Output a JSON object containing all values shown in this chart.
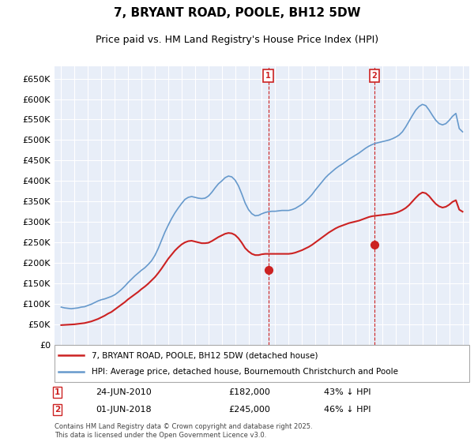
{
  "title": "7, BRYANT ROAD, POOLE, BH12 5DW",
  "subtitle": "Price paid vs. HM Land Registry's House Price Index (HPI)",
  "y_label_format": "£{0}K",
  "yticks": [
    0,
    50000,
    100000,
    150000,
    200000,
    250000,
    300000,
    350000,
    400000,
    450000,
    500000,
    550000,
    600000,
    650000
  ],
  "ytick_labels": [
    "£0",
    "£50K",
    "£100K",
    "£150K",
    "£200K",
    "£250K",
    "£300K",
    "£350K",
    "£400K",
    "£450K",
    "£500K",
    "£550K",
    "£600K",
    "£650K"
  ],
  "xlim_start": 1994.5,
  "xlim_end": 2025.5,
  "ylim_min": 0,
  "ylim_max": 680000,
  "bg_color": "#e8eef8",
  "plot_bg_color": "#e8eef8",
  "grid_color": "#ffffff",
  "hpi_line_color": "#6699cc",
  "price_line_color": "#cc2222",
  "marker_color": "#cc2222",
  "annotation_box_color": "#cc2222",
  "legend_box_color": "#ffffff",
  "legend_border_color": "#aaaaaa",
  "sale1_x": 2010.48,
  "sale1_y": 182000,
  "sale1_label": "1",
  "sale1_date": "24-JUN-2010",
  "sale1_price": "£182,000",
  "sale1_pct": "43% ↓ HPI",
  "sale2_x": 2018.42,
  "sale2_y": 245000,
  "sale2_label": "2",
  "sale2_date": "01-JUN-2018",
  "sale2_price": "£245,000",
  "sale2_pct": "46% ↓ HPI",
  "footer": "Contains HM Land Registry data © Crown copyright and database right 2025.\nThis data is licensed under the Open Government Licence v3.0.",
  "legend1": "7, BRYANT ROAD, POOLE, BH12 5DW (detached house)",
  "legend2": "HPI: Average price, detached house, Bournemouth Christchurch and Poole",
  "hpi_years": [
    1995.0,
    1995.25,
    1995.5,
    1995.75,
    1996.0,
    1996.25,
    1996.5,
    1996.75,
    1997.0,
    1997.25,
    1997.5,
    1997.75,
    1998.0,
    1998.25,
    1998.5,
    1998.75,
    1999.0,
    1999.25,
    1999.5,
    1999.75,
    2000.0,
    2000.25,
    2000.5,
    2000.75,
    2001.0,
    2001.25,
    2001.5,
    2001.75,
    2002.0,
    2002.25,
    2002.5,
    2002.75,
    2003.0,
    2003.25,
    2003.5,
    2003.75,
    2004.0,
    2004.25,
    2004.5,
    2004.75,
    2005.0,
    2005.25,
    2005.5,
    2005.75,
    2006.0,
    2006.25,
    2006.5,
    2006.75,
    2007.0,
    2007.25,
    2007.5,
    2007.75,
    2008.0,
    2008.25,
    2008.5,
    2008.75,
    2009.0,
    2009.25,
    2009.5,
    2009.75,
    2010.0,
    2010.25,
    2010.5,
    2010.75,
    2011.0,
    2011.25,
    2011.5,
    2011.75,
    2012.0,
    2012.25,
    2012.5,
    2012.75,
    2013.0,
    2013.25,
    2013.5,
    2013.75,
    2014.0,
    2014.25,
    2014.5,
    2014.75,
    2015.0,
    2015.25,
    2015.5,
    2015.75,
    2016.0,
    2016.25,
    2016.5,
    2016.75,
    2017.0,
    2017.25,
    2017.5,
    2017.75,
    2018.0,
    2018.25,
    2018.5,
    2018.75,
    2019.0,
    2019.25,
    2019.5,
    2019.75,
    2020.0,
    2020.25,
    2020.5,
    2020.75,
    2021.0,
    2021.25,
    2021.5,
    2021.75,
    2022.0,
    2022.25,
    2022.5,
    2022.75,
    2023.0,
    2023.25,
    2023.5,
    2023.75,
    2024.0,
    2024.25,
    2024.5,
    2024.75,
    2025.0
  ],
  "hpi_values": [
    92000,
    90000,
    89000,
    88000,
    89000,
    90000,
    92000,
    93000,
    96000,
    99000,
    103000,
    107000,
    110000,
    112000,
    115000,
    118000,
    122000,
    128000,
    135000,
    143000,
    152000,
    160000,
    168000,
    175000,
    182000,
    188000,
    196000,
    205000,
    218000,
    235000,
    255000,
    275000,
    292000,
    308000,
    322000,
    334000,
    345000,
    355000,
    360000,
    362000,
    360000,
    358000,
    357000,
    358000,
    363000,
    372000,
    383000,
    393000,
    400000,
    408000,
    412000,
    410000,
    402000,
    388000,
    368000,
    346000,
    330000,
    320000,
    315000,
    316000,
    320000,
    323000,
    325000,
    326000,
    326000,
    327000,
    328000,
    328000,
    328000,
    330000,
    333000,
    338000,
    343000,
    350000,
    358000,
    367000,
    378000,
    388000,
    398000,
    408000,
    416000,
    423000,
    430000,
    436000,
    441000,
    447000,
    453000,
    458000,
    463000,
    468000,
    474000,
    480000,
    485000,
    489000,
    492000,
    494000,
    496000,
    498000,
    500000,
    503000,
    507000,
    512000,
    520000,
    532000,
    546000,
    560000,
    573000,
    582000,
    587000,
    584000,
    573000,
    560000,
    548000,
    540000,
    537000,
    540000,
    548000,
    558000,
    565000,
    528000,
    520000
  ],
  "price_years": [
    1995.0,
    1995.25,
    1995.5,
    1995.75,
    1996.0,
    1996.25,
    1996.5,
    1996.75,
    1997.0,
    1997.25,
    1997.5,
    1997.75,
    1998.0,
    1998.25,
    1998.5,
    1998.75,
    1999.0,
    1999.25,
    1999.5,
    1999.75,
    2000.0,
    2000.25,
    2000.5,
    2000.75,
    2001.0,
    2001.25,
    2001.5,
    2001.75,
    2002.0,
    2002.25,
    2002.5,
    2002.75,
    2003.0,
    2003.25,
    2003.5,
    2003.75,
    2004.0,
    2004.25,
    2004.5,
    2004.75,
    2005.0,
    2005.25,
    2005.5,
    2005.75,
    2006.0,
    2006.25,
    2006.5,
    2006.75,
    2007.0,
    2007.25,
    2007.5,
    2007.75,
    2008.0,
    2008.25,
    2008.5,
    2008.75,
    2009.0,
    2009.25,
    2009.5,
    2009.75,
    2010.0,
    2010.25,
    2010.5,
    2010.75,
    2011.0,
    2011.25,
    2011.5,
    2011.75,
    2012.0,
    2012.25,
    2012.5,
    2012.75,
    2013.0,
    2013.25,
    2013.5,
    2013.75,
    2014.0,
    2014.25,
    2014.5,
    2014.75,
    2015.0,
    2015.25,
    2015.5,
    2015.75,
    2016.0,
    2016.25,
    2016.5,
    2016.75,
    2017.0,
    2017.25,
    2017.5,
    2017.75,
    2018.0,
    2018.25,
    2018.5,
    2018.75,
    2019.0,
    2019.25,
    2019.5,
    2019.75,
    2020.0,
    2020.25,
    2020.5,
    2020.75,
    2021.0,
    2021.25,
    2021.5,
    2021.75,
    2022.0,
    2022.25,
    2022.5,
    2022.75,
    2023.0,
    2023.25,
    2023.5,
    2023.75,
    2024.0,
    2024.25,
    2024.5,
    2024.75,
    2025.0
  ],
  "price_values": [
    48000,
    48500,
    49000,
    49500,
    50000,
    51000,
    52000,
    53000,
    55000,
    57000,
    60000,
    63000,
    67000,
    71000,
    76000,
    80000,
    86000,
    92000,
    98000,
    104000,
    111000,
    117000,
    123000,
    129000,
    136000,
    142000,
    149000,
    157000,
    165000,
    175000,
    186000,
    198000,
    210000,
    220000,
    230000,
    238000,
    245000,
    250000,
    253000,
    254000,
    252000,
    250000,
    248000,
    248000,
    249000,
    253000,
    258000,
    263000,
    267000,
    271000,
    273000,
    272000,
    268000,
    260000,
    249000,
    236000,
    228000,
    222000,
    219000,
    219000,
    221000,
    222000,
    222000,
    222000,
    222000,
    222000,
    222000,
    222000,
    222000,
    223000,
    225000,
    228000,
    231000,
    235000,
    239000,
    244000,
    250000,
    256000,
    262000,
    268000,
    274000,
    279000,
    284000,
    288000,
    291000,
    294000,
    297000,
    299000,
    301000,
    303000,
    306000,
    309000,
    312000,
    314000,
    315000,
    316000,
    317000,
    318000,
    319000,
    320000,
    322000,
    325000,
    329000,
    334000,
    341000,
    350000,
    359000,
    367000,
    372000,
    370000,
    363000,
    353000,
    344000,
    338000,
    335000,
    337000,
    342000,
    349000,
    353000,
    330000,
    325000
  ]
}
